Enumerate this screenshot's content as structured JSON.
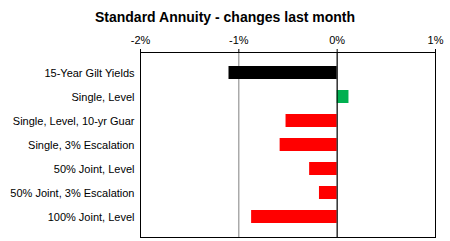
{
  "chart_data": {
    "type": "bar",
    "title": "Standard Annuity - changes last month",
    "orientation": "horizontal",
    "categories": [
      "15-Year Gilt Yields",
      "Single, Level",
      "Single, Level, 10-yr Guar",
      "Single, 3% Escalation",
      "50% Joint, Level",
      "50% Joint, 3% Escalation",
      "100% Joint, Level"
    ],
    "values": [
      -1.1,
      0.12,
      -0.52,
      -0.58,
      -0.28,
      -0.18,
      -0.87
    ],
    "colors": [
      "#000000",
      "#00b050",
      "#ff0000",
      "#ff0000",
      "#ff0000",
      "#ff0000",
      "#ff0000"
    ],
    "xlim": [
      -2,
      1
    ],
    "xticks": [
      {
        "value": -2,
        "label": "-2%"
      },
      {
        "value": -1,
        "label": "-1%"
      },
      {
        "value": 0,
        "label": "0%"
      },
      {
        "value": 1,
        "label": "1%"
      }
    ],
    "grid": true
  }
}
